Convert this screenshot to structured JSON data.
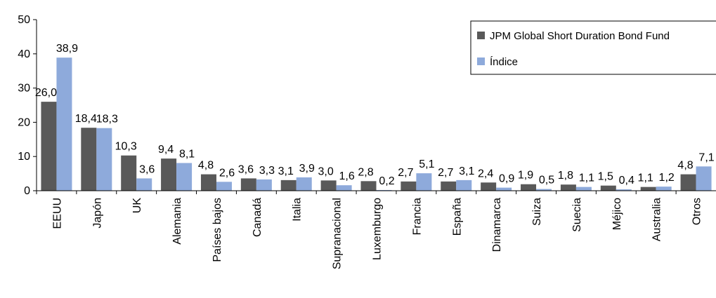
{
  "chart_data": {
    "type": "bar",
    "categories": [
      "EEUU",
      "Japón",
      "UK",
      "Alemania",
      "Países bajos",
      "Canadá",
      "Italia",
      "Supranacional",
      "Luxemburgo",
      "Francia",
      "España",
      "Dinamarca",
      "Suiza",
      "Suecia",
      "Méjico",
      "Australia",
      "Otros"
    ],
    "series": [
      {
        "name": "JPM Global Short Duration Bond Fund",
        "color": "#595959",
        "values": [
          26.0,
          18.4,
          10.3,
          9.4,
          4.8,
          3.6,
          3.1,
          3.0,
          2.8,
          2.7,
          2.7,
          2.4,
          1.9,
          1.8,
          1.5,
          1.1,
          4.8
        ],
        "labels": [
          "26,0",
          "18,4",
          "10,3",
          "9,4",
          "4,8",
          "3,6",
          "3,1",
          "3,0",
          "2,8",
          "2,7",
          "2,7",
          "2,4",
          "1,9",
          "1,8",
          "1,5",
          "1,1",
          "4,8"
        ]
      },
      {
        "name": "Índice",
        "color": "#8eaadb",
        "values": [
          38.9,
          18.3,
          3.6,
          8.1,
          2.6,
          3.3,
          3.9,
          1.6,
          0.2,
          5.1,
          3.1,
          0.9,
          0.5,
          1.1,
          0.4,
          1.2,
          7.1
        ],
        "labels": [
          "38,9",
          "18,3",
          "3,6",
          "8,1",
          "2,6",
          "3,3",
          "3,9",
          "1,6",
          "0,2",
          "5,1",
          "3,1",
          "0,9",
          "0,5",
          "1,1",
          "0,4",
          "1,2",
          "7,1"
        ]
      }
    ],
    "yticks": [
      "0",
      "10",
      "20",
      "30",
      "40",
      "50"
    ],
    "ylim": [
      0,
      50
    ],
    "grid": false,
    "legend": "top-right",
    "title": "",
    "xlabel": "",
    "ylabel": ""
  }
}
